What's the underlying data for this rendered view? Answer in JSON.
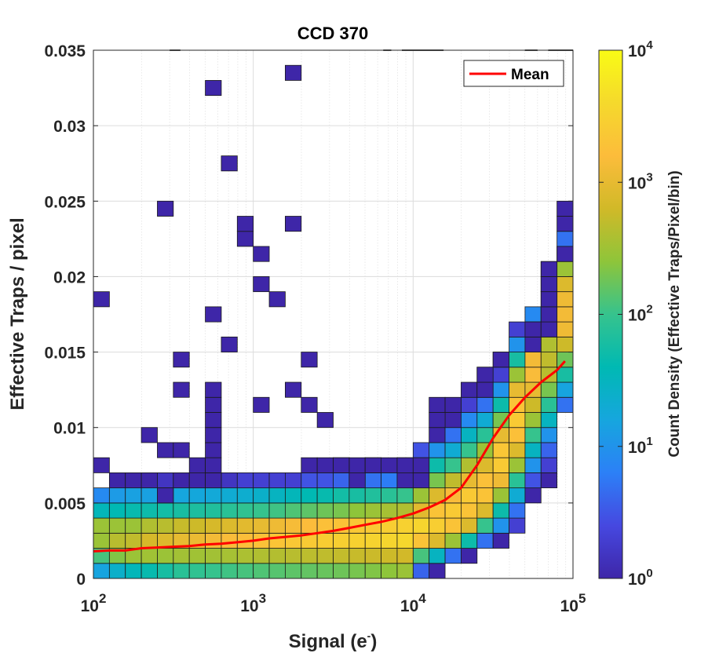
{
  "chart_data": {
    "type": "heatmap",
    "title": "CCD 370",
    "xlabel": "Signal (e",
    "xlabel_sup": "-",
    "xlabel_close": ")",
    "ylabel": "Effective Traps / pixel",
    "xscale": "log",
    "xlim": [
      100,
      100000
    ],
    "ylim": [
      0,
      0.035
    ],
    "xticks": [
      {
        "base": "10",
        "exp": "2",
        "value": 100
      },
      {
        "base": "10",
        "exp": "3",
        "value": 1000
      },
      {
        "base": "10",
        "exp": "4",
        "value": 10000
      },
      {
        "base": "10",
        "exp": "5",
        "value": 100000
      }
    ],
    "yticks": [
      {
        "label": "0",
        "value": 0
      },
      {
        "label": "0.005",
        "value": 0.005
      },
      {
        "label": "0.01",
        "value": 0.01
      },
      {
        "label": "0.015",
        "value": 0.015
      },
      {
        "label": "0.02",
        "value": 0.02
      },
      {
        "label": "0.025",
        "value": 0.025
      },
      {
        "label": "0.03",
        "value": 0.03
      },
      {
        "label": "0.035",
        "value": 0.035
      }
    ],
    "bins": {
      "n_x": 30,
      "log_x_start": 2,
      "log_x_step": 0.1,
      "y_step": 0.001
    },
    "colorbar": {
      "label": "Count Density (Effective Traps/Pixel/bin)",
      "scale": "log",
      "range": [
        1,
        10000
      ],
      "colormap": [
        "#3e26a8",
        "#4648e0",
        "#2c80f7",
        "#16a6de",
        "#00b9b3",
        "#36c38d",
        "#8ec53a",
        "#d1b928",
        "#fcbc3b",
        "#f5d92c",
        "#f9fb15"
      ],
      "ticks": [
        {
          "base": "10",
          "exp": "0",
          "value": 1
        },
        {
          "base": "10",
          "exp": "1",
          "value": 10
        },
        {
          "base": "10",
          "exp": "2",
          "value": 100
        },
        {
          "base": "10",
          "exp": "3",
          "value": 1000
        },
        {
          "base": "10",
          "exp": "4",
          "value": 10000
        }
      ]
    },
    "columns": [
      [
        15,
        120,
        300,
        300,
        35,
        8
      ],
      [
        25,
        220,
        450,
        300,
        40,
        12,
        1
      ],
      [
        35,
        300,
        500,
        300,
        45,
        14,
        1
      ],
      [
        45,
        320,
        700,
        400,
        50,
        14,
        1
      ],
      [
        60,
        300,
        800,
        450,
        55,
        16,
        1.5
      ],
      [
        80,
        330,
        1000,
        550,
        60,
        16,
        1.5
      ],
      [
        90,
        320,
        1100,
        600,
        65,
        17,
        1.5
      ],
      [
        100,
        330,
        1300,
        700,
        70,
        18,
        1.5
      ],
      [
        110,
        350,
        1500,
        800,
        80,
        20,
        1.5
      ],
      [
        120,
        380,
        1700,
        900,
        90,
        22,
        2
      ],
      [
        130,
        400,
        1900,
        1000,
        100,
        25,
        2
      ],
      [
        140,
        420,
        2100,
        1200,
        110,
        30,
        2
      ],
      [
        150,
        450,
        2300,
        1400,
        130,
        35,
        2
      ],
      [
        160,
        470,
        2500,
        1600,
        150,
        40,
        3,
        1
      ],
      [
        170,
        490,
        2700,
        1800,
        180,
        45,
        3,
        1
      ],
      [
        180,
        520,
        2900,
        2000,
        200,
        55,
        4,
        1
      ],
      [
        200,
        550,
        3100,
        2300,
        250,
        60,
        4,
        1
      ],
      [
        220,
        580,
        3300,
        2500,
        300,
        70,
        5,
        1
      ],
      [
        250,
        600,
        3500,
        2800,
        350,
        80,
        6,
        1
      ],
      [
        300,
        650,
        3700,
        3100,
        400,
        100,
        8,
        2
      ],
      [
        4,
        120,
        2000,
        3500,
        900,
        300,
        100,
        20,
        3
      ],
      [
        1,
        30,
        800,
        2800,
        2000,
        800,
        200,
        50,
        10,
        1
      ],
      [
        0,
        5,
        300,
        2000,
        2500,
        1500,
        500,
        100,
        20,
        5,
        1
      ],
      [
        0,
        1,
        50,
        800,
        2000,
        2400,
        1000,
        400,
        100,
        30,
        8,
        2,
        1
      ],
      [
        0,
        0,
        5,
        100,
        800,
        2000,
        1800,
        800,
        300,
        80,
        20,
        5,
        1,
        1
      ],
      [
        0,
        0,
        1,
        10,
        50,
        300,
        1200,
        2500,
        2200,
        1000,
        200,
        50,
        10,
        2,
        1
      ],
      [
        0,
        0,
        0,
        2,
        5,
        20,
        80,
        300,
        800,
        1800,
        2500,
        2000,
        1000,
        300,
        60,
        10,
        2
      ],
      [
        0,
        0,
        0,
        0,
        0,
        1,
        3,
        10,
        30,
        100,
        300,
        600,
        1000,
        1500,
        1300,
        500,
        100,
        8
      ],
      [
        0,
        0,
        0,
        0,
        0,
        0,
        1,
        2,
        4,
        10,
        30,
        80,
        200,
        450,
        500,
        400,
        300,
        150,
        30,
        4,
        1
      ],
      [
        0,
        0,
        0,
        0,
        0,
        0,
        0,
        0,
        0,
        0,
        0,
        5,
        15,
        60,
        180,
        600,
        1200,
        1300,
        1200,
        800,
        300,
        80,
        5,
        1
      ]
    ],
    "outliers": [
      [
        0,
        18
      ],
      [
        0,
        7
      ],
      [
        3,
        9
      ],
      [
        4,
        8
      ],
      [
        4,
        5
      ],
      [
        4,
        24
      ],
      [
        5,
        6
      ],
      [
        5,
        8
      ],
      [
        5,
        12
      ],
      [
        5,
        14
      ],
      [
        6,
        7
      ],
      [
        6,
        6
      ],
      [
        7,
        6
      ],
      [
        7,
        7
      ],
      [
        7,
        8
      ],
      [
        7,
        9
      ],
      [
        7,
        10
      ],
      [
        7,
        11
      ],
      [
        7,
        12
      ],
      [
        7,
        17
      ],
      [
        7,
        32
      ],
      [
        8,
        15
      ],
      [
        8,
        27
      ],
      [
        9,
        22
      ],
      [
        9,
        23
      ],
      [
        10,
        21
      ],
      [
        10,
        19
      ],
      [
        10,
        11
      ],
      [
        11,
        18
      ],
      [
        12,
        12
      ],
      [
        12,
        23
      ],
      [
        12,
        33
      ],
      [
        13,
        11
      ],
      [
        13,
        14
      ],
      [
        14,
        10
      ],
      [
        15,
        7
      ],
      [
        16,
        6
      ],
      [
        17,
        7
      ],
      [
        19,
        7
      ],
      [
        19,
        6
      ],
      [
        20,
        6
      ],
      [
        20,
        7
      ],
      [
        21,
        10
      ],
      [
        21,
        11
      ],
      [
        22,
        11
      ],
      [
        24,
        12
      ],
      [
        24,
        13
      ],
      [
        25,
        14
      ],
      [
        27,
        15
      ],
      [
        27,
        16
      ],
      [
        28,
        16
      ],
      [
        28,
        17
      ],
      [
        28,
        18
      ],
      [
        28,
        19
      ],
      [
        28,
        20
      ],
      [
        29,
        24
      ],
      [
        29,
        21
      ]
    ],
    "series": [
      {
        "name": "Mean",
        "color": "#ff0000",
        "x": [
          100,
          125,
          158,
          200,
          251,
          316,
          398,
          501,
          631,
          794,
          1000,
          1259,
          1585,
          1995,
          2512,
          3162,
          3981,
          5012,
          6310,
          7943,
          10000,
          12589,
          15849,
          19953,
          25119,
          31623,
          39811,
          50119,
          63096,
          79433,
          89125
        ],
        "y": [
          0.0018,
          0.00185,
          0.00185,
          0.002,
          0.00205,
          0.0021,
          0.00215,
          0.00225,
          0.0023,
          0.0024,
          0.0025,
          0.00265,
          0.00275,
          0.00285,
          0.003,
          0.00315,
          0.00335,
          0.00355,
          0.00375,
          0.004,
          0.0043,
          0.0047,
          0.0052,
          0.006,
          0.0075,
          0.0093,
          0.0108,
          0.012,
          0.013,
          0.0138,
          0.0144
        ]
      }
    ],
    "legend": {
      "position": "top-right",
      "entries": [
        "Mean"
      ]
    },
    "top_edge_marks": [
      {
        "x_from": 300,
        "x_to": 350
      },
      {
        "x_from": 6500,
        "x_to": 7300
      },
      {
        "x_from": 8500,
        "x_to": 15500
      },
      {
        "x_from": 50000,
        "x_to": 60000
      },
      {
        "x_from": 70000,
        "x_to": 100000
      }
    ],
    "grid": true
  }
}
